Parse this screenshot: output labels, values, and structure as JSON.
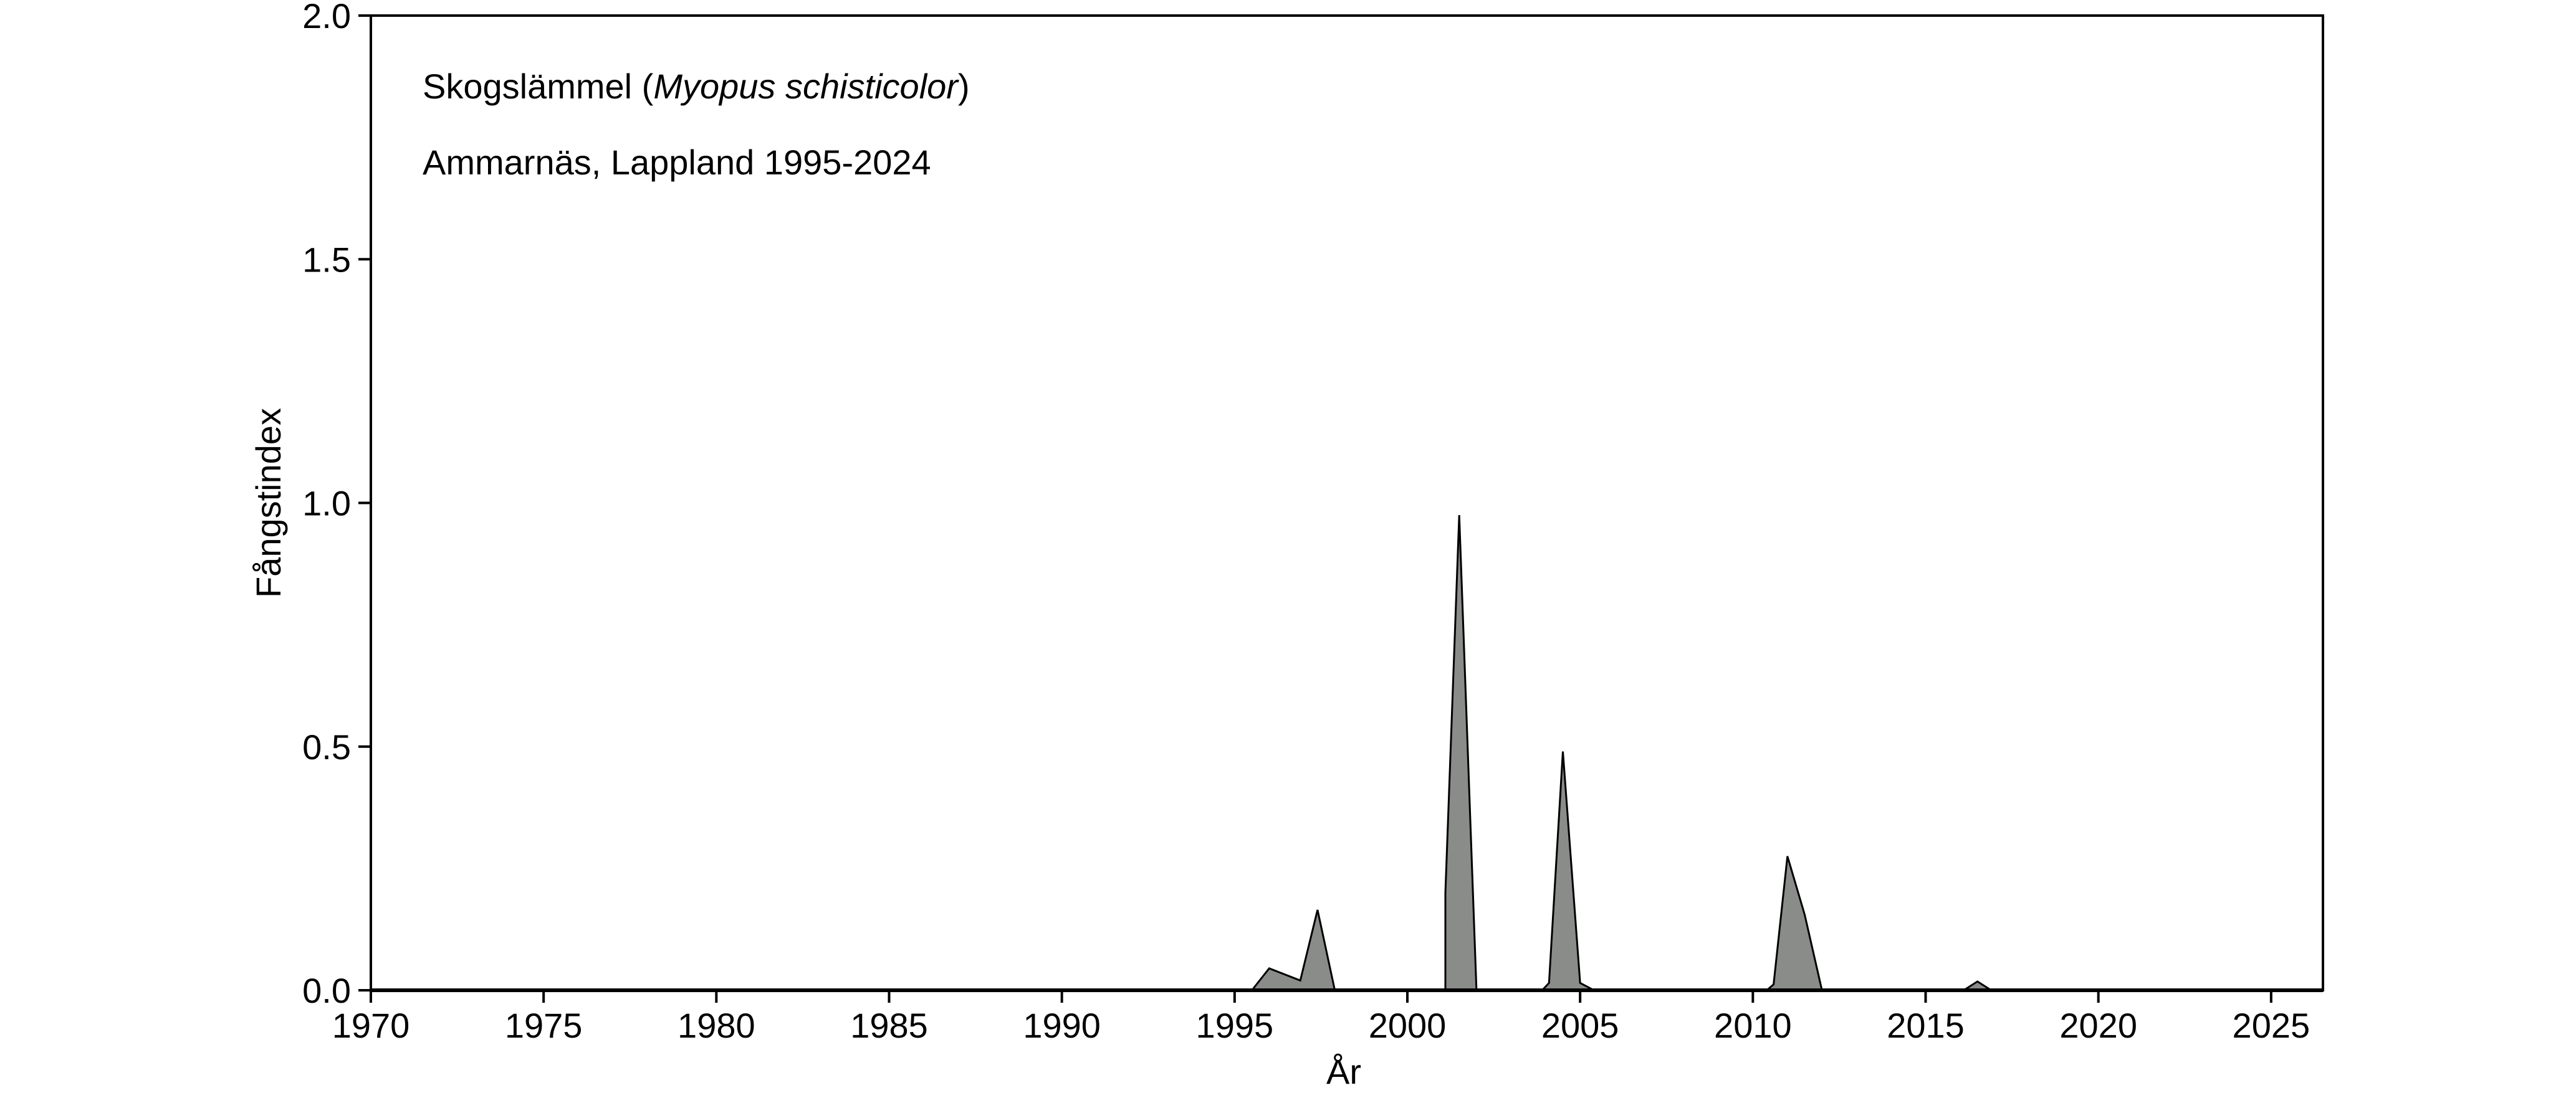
{
  "chart_data": {
    "type": "area",
    "xlabel": "År",
    "ylabel": "Fångstindex",
    "xlim": [
      1970,
      2026.5
    ],
    "ylim": [
      0,
      2.0
    ],
    "xticks": [
      "1970",
      "1975",
      "1980",
      "1985",
      "1990",
      "1995",
      "2000",
      "2005",
      "2010",
      "2015",
      "2020",
      "2025"
    ],
    "yticks": [
      "0.0",
      "0.5",
      "1.0",
      "1.5",
      "2.0"
    ],
    "annotation": {
      "species_prefix": "Skogslämmel (",
      "species_latin": "Myopus schisticolor",
      "species_suffix": ")",
      "location": "Ammarnäs, Lappland 1995-2024"
    },
    "fill_color": "#8a8c8a",
    "grid": false,
    "series": [
      {
        "x": [
          1995.5,
          1996.0,
          1996.9,
          1997.4,
          1997.9,
          2001.1,
          2001.1,
          2001.5,
          2002.0,
          2003.9,
          2004.1,
          2004.5,
          2005.0,
          2005.4,
          2010.4,
          2010.6,
          2011.0,
          2011.5,
          2012.0,
          2016.1,
          2016.5,
          2016.9
        ],
        "y": [
          0.0,
          0.045,
          0.02,
          0.165,
          0.0,
          0.0,
          0.2,
          0.975,
          0.0,
          0.0,
          0.015,
          0.49,
          0.015,
          0.0,
          0.0,
          0.012,
          0.275,
          0.155,
          0.0,
          0.0,
          0.018,
          0.0
        ]
      }
    ]
  }
}
